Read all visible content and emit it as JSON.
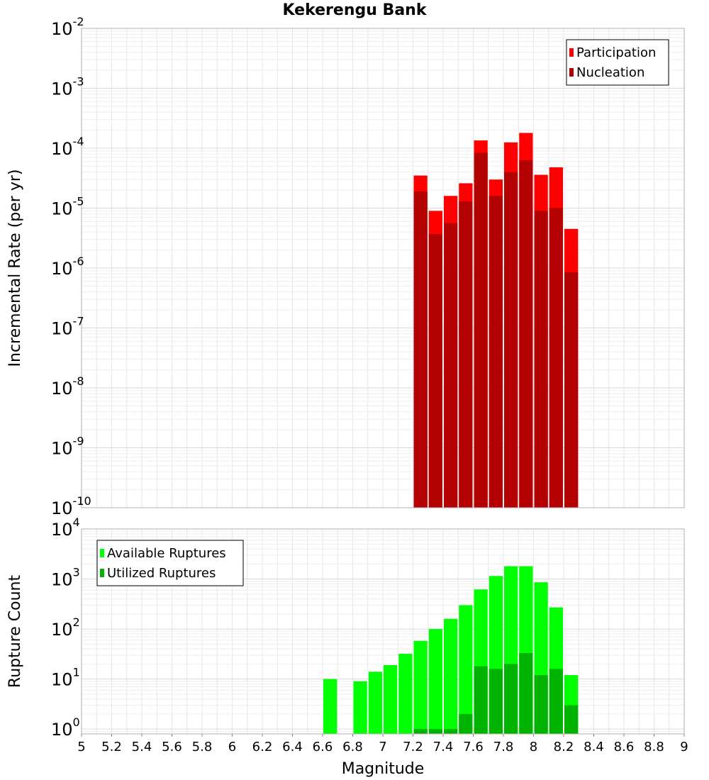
{
  "title": "Kekerengu Bank",
  "chart_data": [
    {
      "type": "bar",
      "ylabel": "Incremental Rate (per yr)",
      "yscale": "log",
      "ylim": [
        1e-10,
        0.01
      ],
      "xlim": [
        5,
        9
      ],
      "y_tick_exponents": [
        "-2",
        "-3",
        "-4",
        "-5",
        "-6",
        "-7",
        "-8",
        "-9",
        "-10"
      ],
      "legend_position": "top-right",
      "bin_width": 0.1,
      "x": [
        7.25,
        7.35,
        7.45,
        7.55,
        7.65,
        7.75,
        7.85,
        7.95,
        8.05,
        8.15,
        8.25
      ],
      "series": [
        {
          "name": "Participation",
          "color": "#ff0000",
          "values": [
            3.5e-05,
            9e-06,
            1.6e-05,
            2.6e-05,
            0.000135,
            3e-05,
            0.000125,
            0.00018,
            3.6e-05,
            4.8e-05,
            4.5e-06
          ]
        },
        {
          "name": "Nucleation",
          "color": "#b30000",
          "values": [
            1.9e-05,
            3.7e-06,
            5.6e-06,
            1.3e-05,
            8.4e-05,
            1.6e-05,
            4e-05,
            6.3e-05,
            9e-06,
            1e-05,
            8.5e-07
          ]
        }
      ]
    },
    {
      "type": "bar",
      "ylabel": "Rupture Count",
      "xlabel": "Magnitude",
      "yscale": "log",
      "ylim": [
        0.8,
        10000
      ],
      "xlim": [
        5,
        9
      ],
      "y_tick_exponents": [
        "4",
        "3",
        "2",
        "1",
        "0"
      ],
      "x_tick_labels": [
        "5",
        "5.2",
        "5.4",
        "5.6",
        "5.8",
        "6",
        "6.2",
        "6.4",
        "6.6",
        "6.8",
        "7",
        "7.2",
        "7.4",
        "7.6",
        "7.8",
        "8",
        "8.2",
        "8.4",
        "8.6",
        "8.8",
        "9"
      ],
      "legend_position": "top-left",
      "bin_width": 0.1,
      "x": [
        6.65,
        6.75,
        6.85,
        6.95,
        7.05,
        7.15,
        7.25,
        7.35,
        7.45,
        7.55,
        7.65,
        7.75,
        7.85,
        7.95,
        8.05,
        8.15,
        8.25
      ],
      "series": [
        {
          "name": "Available Ruptures",
          "color": "#00ff00",
          "values": [
            10,
            0,
            9,
            14,
            19,
            32,
            58,
            100,
            160,
            300,
            620,
            1150,
            1800,
            1800,
            860,
            270,
            12
          ]
        },
        {
          "name": "Utilized Ruptures",
          "color": "#00b300",
          "values": [
            0,
            0,
            0,
            0,
            0,
            0,
            1,
            1,
            1,
            2,
            18,
            16,
            20,
            33,
            12,
            16,
            3
          ]
        }
      ]
    }
  ]
}
